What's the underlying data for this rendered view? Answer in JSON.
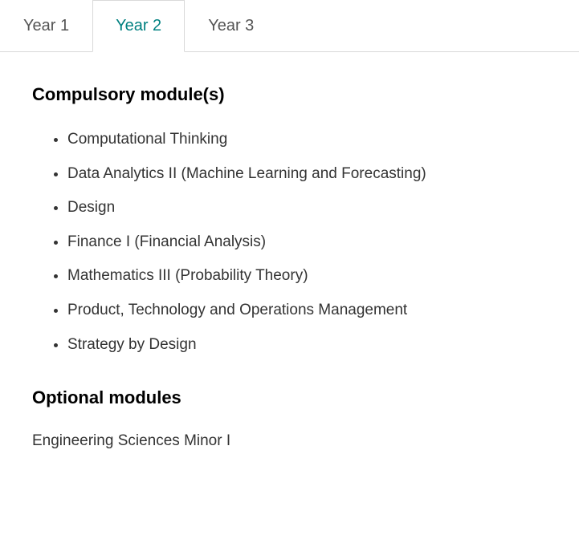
{
  "tabs": [
    {
      "label": "Year 1",
      "active": false
    },
    {
      "label": "Year 2",
      "active": true
    },
    {
      "label": "Year 3",
      "active": false
    }
  ],
  "sections": {
    "compulsory": {
      "heading": "Compulsory module(s)",
      "items": [
        "Computational Thinking",
        "Data Analytics II (Machine Learning and Forecasting)",
        "Design",
        "Finance I (Financial Analysis)",
        "Mathematics III (Probability Theory)",
        "Product, Technology and Operations Management",
        "Strategy by Design"
      ]
    },
    "optional": {
      "heading": "Optional modules",
      "text": "Engineering Sciences Minor I"
    }
  }
}
